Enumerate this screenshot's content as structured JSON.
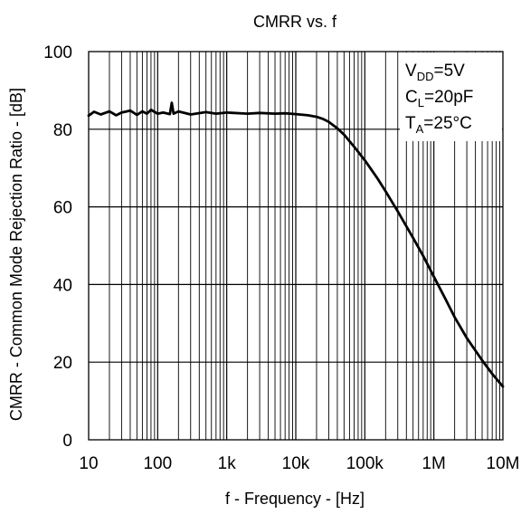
{
  "chart_data": {
    "type": "line",
    "title": "CMRR vs. f",
    "xlabel": "f - Frequency - [Hz]",
    "ylabel": "CMRR - Common Mode Rejection Ratio - [dB]",
    "xscale": "log",
    "xlim": [
      10,
      10000000
    ],
    "ylim": [
      0,
      100
    ],
    "grid": true,
    "x_ticks": [
      10,
      100,
      1000,
      10000,
      100000,
      1000000,
      10000000
    ],
    "x_tick_labels": [
      "10",
      "100",
      "1k",
      "10k",
      "100k",
      "1M",
      "10M"
    ],
    "y_ticks": [
      0,
      20,
      40,
      60,
      80,
      100
    ],
    "y_tick_labels": [
      "0",
      "20",
      "40",
      "60",
      "80",
      "100"
    ],
    "annotation": {
      "position": "top-right",
      "lines": [
        {
          "main": "V",
          "sub": "DD",
          "rest": "=5V"
        },
        {
          "main": "C",
          "sub": "L",
          "rest": "=20pF"
        },
        {
          "main": "T",
          "sub": "A",
          "rest": "=25°C"
        }
      ]
    },
    "series": [
      {
        "color": "#000000",
        "x": [
          10,
          12,
          15,
          20,
          25,
          30,
          40,
          50,
          60,
          70,
          80,
          100,
          120,
          150,
          160,
          170,
          200,
          300,
          500,
          700,
          1000,
          2000,
          3000,
          5000,
          7000,
          10000,
          15000,
          20000,
          25000,
          30000,
          40000,
          50000,
          70000,
          100000,
          150000,
          200000,
          300000,
          500000,
          700000,
          1000000,
          1500000,
          2000000,
          3000000,
          5000000,
          7000000,
          10000000
        ],
        "y": [
          83.5,
          84.5,
          83.8,
          84.6,
          83.6,
          84.3,
          84.8,
          83.7,
          84.6,
          84.0,
          85.0,
          84.0,
          84.3,
          83.9,
          86.8,
          84.0,
          84.6,
          83.8,
          84.4,
          84.0,
          84.3,
          84.0,
          84.2,
          84.0,
          84.1,
          83.9,
          83.6,
          83.2,
          82.6,
          81.9,
          80.2,
          78.6,
          75.5,
          72.0,
          67.5,
          64.0,
          58.8,
          52.0,
          47.4,
          42.0,
          36.0,
          31.6,
          26.2,
          20.5,
          17.0,
          13.7
        ]
      }
    ]
  }
}
